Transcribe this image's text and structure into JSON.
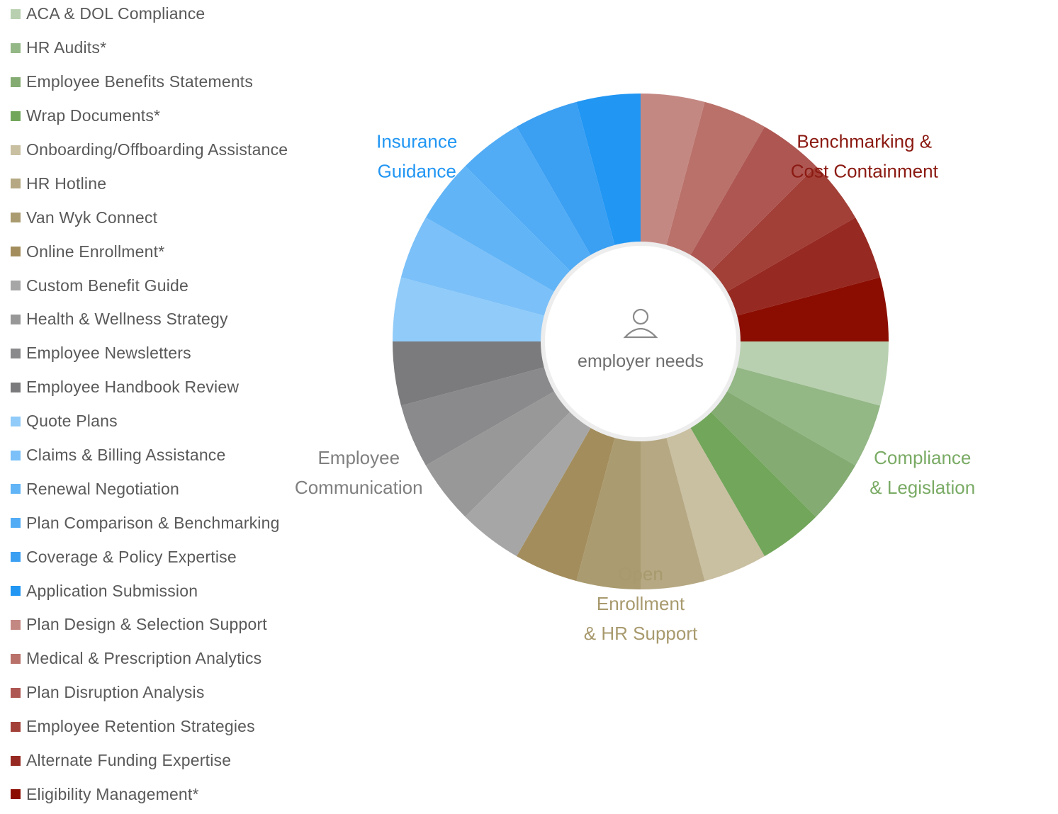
{
  "chart_data": {
    "type": "pie",
    "variant": "donut",
    "title": "",
    "center_label": "employer needs",
    "center_icon": "person-icon",
    "categories": [
      "ACA & DOL Compliance",
      "HR Audits*",
      "Employee Benefits Statements",
      "Wrap Documents*",
      "Onboarding/Offboarding Assistance",
      "HR Hotline",
      "Van Wyk Connect",
      "Online Enrollment*",
      "Custom Benefit Guide",
      "Health & Wellness Strategy",
      "Employee Newsletters",
      "Employee Handbook Review",
      "Quote Plans",
      "Claims & Billing Assistance",
      "Renewal Negotiation",
      "Plan Comparison & Benchmarking",
      "Coverage & Policy Expertise",
      "Application Submission",
      "Plan Design & Selection Support",
      "Medical & Prescription Analytics",
      "Plan Disruption Analysis",
      "Employee Retention Strategies",
      "Alternate Funding Expertise",
      "Eligibility Management*"
    ],
    "values": [
      1,
      1,
      1,
      1,
      1,
      1,
      1,
      1,
      1,
      1,
      1,
      1,
      1,
      1,
      1,
      1,
      1,
      1,
      1,
      1,
      1,
      1,
      1,
      1
    ],
    "colors": [
      "#b8d0b0",
      "#93b785",
      "#84ab72",
      "#72a65b",
      "#c9bfa1",
      "#b5a882",
      "#aa9b70",
      "#a38d5c",
      "#a6a6a6",
      "#989898",
      "#8a8a8c",
      "#7b7b7d",
      "#90cbf9",
      "#7bc0f8",
      "#61b4f6",
      "#51acf5",
      "#3b9ff2",
      "#2196f3",
      "#c48883",
      "#b9716a",
      "#ae5652",
      "#a23f37",
      "#962a22",
      "#8b0d02"
    ],
    "slice_order_in_ring": [
      12,
      13,
      14,
      15,
      16,
      17,
      18,
      19,
      20,
      21,
      22,
      23,
      0,
      1,
      2,
      3,
      4,
      5,
      6,
      7,
      8,
      9,
      10,
      11
    ],
    "groups": [
      {
        "name_lines": [
          "Compliance",
          "& Legislation"
        ],
        "color": "#7aab65",
        "members": [
          0,
          1,
          2,
          3
        ]
      },
      {
        "name_lines": [
          "Open",
          "Enrollment",
          "& HR Support"
        ],
        "color": "#a89a6e",
        "members": [
          4,
          5,
          6,
          7
        ]
      },
      {
        "name_lines": [
          "Employee",
          "Communication"
        ],
        "color": "#7f7f7f",
        "members": [
          8,
          9,
          10,
          11
        ]
      },
      {
        "name_lines": [
          "Insurance",
          "Guidance"
        ],
        "color": "#2196f3",
        "members": [
          12,
          13,
          14,
          15,
          16,
          17
        ]
      },
      {
        "name_lines": [
          "Benchmarking &",
          "Cost Containment"
        ],
        "color": "#8b1a12",
        "members": [
          18,
          19,
          20,
          21,
          22,
          23
        ]
      }
    ],
    "legend_position": "left"
  }
}
